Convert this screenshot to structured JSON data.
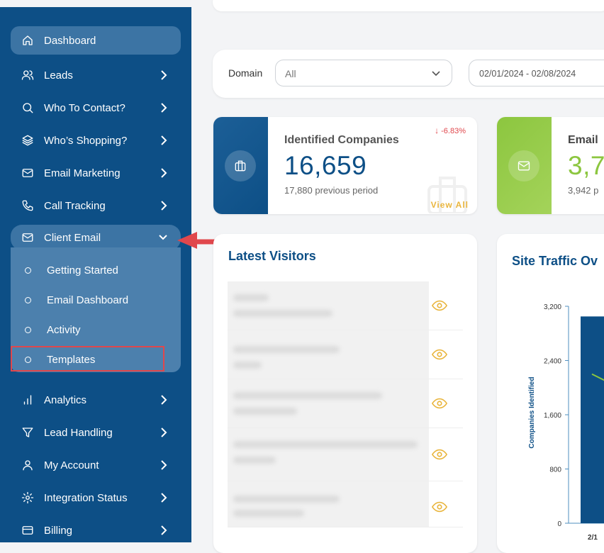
{
  "sidebar": {
    "items": [
      {
        "label": "Dashboard",
        "icon": "home-icon"
      },
      {
        "label": "Leads",
        "icon": "users-icon"
      },
      {
        "label": "Who To Contact?",
        "icon": "search-icon"
      },
      {
        "label": "Who’s Shopping?",
        "icon": "layers-icon"
      },
      {
        "label": "Email Marketing",
        "icon": "mail-icon"
      },
      {
        "label": "Call Tracking",
        "icon": "phone-icon"
      },
      {
        "label": "Client Email",
        "icon": "mail-icon"
      },
      {
        "label": "Analytics",
        "icon": "bar-chart-icon"
      },
      {
        "label": "Lead Handling",
        "icon": "filter-icon"
      },
      {
        "label": "My Account",
        "icon": "user-icon"
      },
      {
        "label": "Integration Status",
        "icon": "gear-icon"
      },
      {
        "label": "Billing",
        "icon": "card-icon"
      }
    ],
    "client_email_sub": [
      "Getting Started",
      "Email Dashboard",
      "Activity",
      "Templates"
    ]
  },
  "filters": {
    "domain_label": "Domain",
    "domain_value": "All",
    "date_range": "02/01/2024 - 02/08/2024"
  },
  "stats": {
    "identified": {
      "title": "Identified Companies",
      "value": "16,659",
      "previous": "17,880 previous period",
      "change": "-6.83%",
      "link": "View All"
    },
    "email": {
      "title": "Email",
      "value": "3,7",
      "previous": "3,942 p"
    }
  },
  "visitors": {
    "title": "Latest Visitors"
  },
  "traffic": {
    "title": "Site Traffic Ov",
    "ylabel": "Companies Identified",
    "ticks": [
      "3,200",
      "2,400",
      "1,600",
      "800",
      "0"
    ],
    "xtick": "2/1"
  },
  "colors": {
    "sidebar": "#0d4f86",
    "accent_blue": "#0d4f86",
    "accent_green": "#8cc63f",
    "accent_gold": "#e9b53d",
    "alert_red": "#e0474c"
  },
  "chart_data": {
    "type": "bar",
    "title": "Site Traffic Ov",
    "xlabel": "",
    "ylabel": "Companies Identified",
    "ylim": [
      0,
      3200
    ],
    "categories": [
      "2/1"
    ],
    "series": [
      {
        "type": "bar",
        "values": [
          3050
        ]
      },
      {
        "type": "line",
        "values": [
          2200
        ]
      }
    ]
  }
}
